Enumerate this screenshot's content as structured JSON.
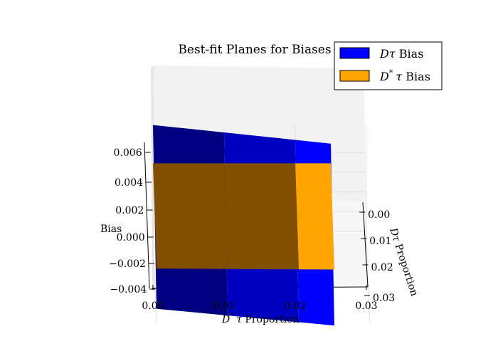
{
  "chart_data": {
    "type": "surface3d",
    "title": "Best-fit Planes for Biases",
    "xlabel": "D* τ Proportion",
    "xlabel_parts": {
      "sym": "D",
      "sup": "*",
      "tau": "τ",
      "rest": " Proportion"
    },
    "ylabel": "Dτ Proportion",
    "zlabel": "Bias",
    "x_ticks": [
      "0.00",
      "0.01",
      "0.02",
      "0.03"
    ],
    "y_ticks": [
      "0.00",
      "0.01",
      "0.02",
      "0.03"
    ],
    "z_ticks": [
      "−0.004",
      "−0.002",
      "0.000",
      "0.002",
      "0.004",
      "0.006"
    ],
    "xlim": [
      0,
      0.03
    ],
    "ylim": [
      0,
      0.03
    ],
    "zlim": [
      -0.004,
      0.007
    ],
    "grid": true,
    "legend_position": "top-right",
    "series": [
      {
        "name": "Dτ Bias",
        "label_parts": {
          "sym": "D",
          "sup": "",
          "tau": "τ",
          "rest": " Bias"
        },
        "color": "#0000ff",
        "plane": {
          "x": [
            0,
            0.025
          ],
          "y": [
            0,
            0.03
          ],
          "z_at_x0": [
            0.0088,
            -0.0023
          ],
          "z_at_x1": [
            0.0069,
            -0.004
          ]
        }
      },
      {
        "name": "D* τ Bias",
        "label_parts": {
          "sym": "D",
          "sup": "*",
          "tau": "τ",
          "rest": " Bias"
        },
        "color": "#ffa500",
        "plane": {
          "x": [
            0,
            0.025
          ],
          "y": [
            0,
            0.03
          ],
          "z_at_x0": [
            0.0049,
            0.0018
          ],
          "z_at_x1": [
            0.0049,
            0.0017
          ]
        }
      }
    ]
  }
}
